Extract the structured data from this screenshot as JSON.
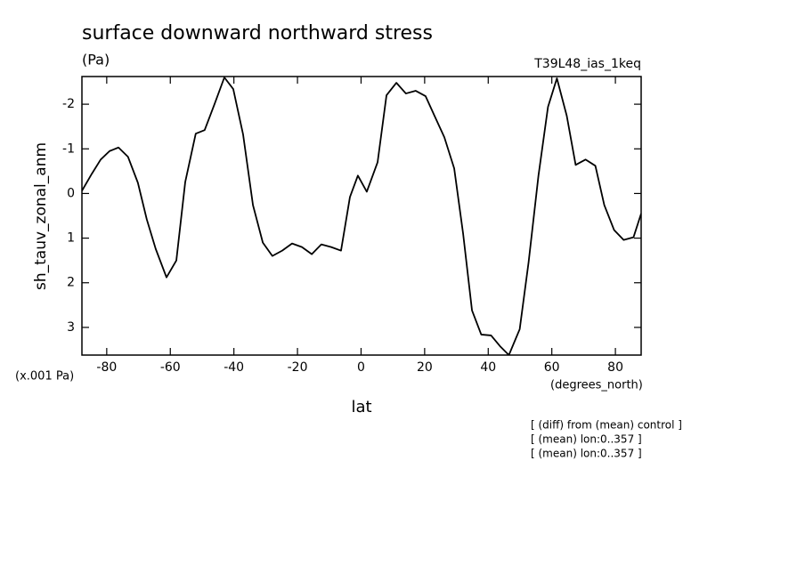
{
  "chart_data": {
    "type": "line",
    "title": "surface downward northward stress",
    "units_label": "(Pa)",
    "annotation": "T39L48_ias_1keq",
    "y_label": "sh_tauv_zonal_anm",
    "y_scale_label": "(x.001 Pa)",
    "x_units_label": "(degrees_north)",
    "x_label": "lat",
    "notes": [
      "[ (diff) from (mean) control ]",
      "[ (mean) lon:0..357 ]",
      "[ (mean) lon:0..357 ]"
    ],
    "x": [
      -87.8,
      -84.7,
      -81.9,
      -79.1,
      -76.3,
      -73.3,
      -70.2,
      -67.4,
      -64.6,
      -61.2,
      -58.1,
      -55.3,
      -52.0,
      -49.2,
      -46.1,
      -43.0,
      -40.2,
      -37.1,
      -34.0,
      -30.9,
      -27.9,
      -24.8,
      -21.7,
      -18.6,
      -15.5,
      -12.5,
      -9.4,
      -6.3,
      -3.5,
      -1.0,
      1.8,
      5.2,
      8.0,
      11.1,
      14.1,
      17.2,
      20.3,
      23.1,
      26.2,
      29.3,
      32.1,
      34.9,
      37.8,
      40.9,
      43.7,
      46.5,
      49.9,
      52.7,
      55.8,
      58.8,
      61.6,
      64.7,
      67.5,
      70.6,
      73.7,
      76.5,
      79.6,
      82.6,
      85.7,
      88.1
    ],
    "series": [
      {
        "name": "sh_tauv_zonal_anm",
        "color": "#000000",
        "values": [
          -0.06,
          -0.44,
          -0.76,
          -0.95,
          -1.03,
          -0.82,
          -0.24,
          0.58,
          1.24,
          1.88,
          1.5,
          -0.26,
          -1.34,
          -1.42,
          -2.0,
          -2.6,
          -2.34,
          -1.32,
          0.26,
          1.1,
          1.4,
          1.28,
          1.12,
          1.2,
          1.36,
          1.14,
          1.2,
          1.28,
          0.08,
          -0.4,
          -0.04,
          -0.7,
          -2.2,
          -2.48,
          -2.24,
          -2.3,
          -2.18,
          -1.74,
          -1.26,
          -0.56,
          0.9,
          2.62,
          3.16,
          3.18,
          3.42,
          3.62,
          3.04,
          1.54,
          -0.4,
          -1.94,
          -2.58,
          -1.74,
          -0.64,
          -0.76,
          -0.62,
          0.26,
          0.82,
          1.04,
          0.98,
          0.45
        ]
      }
    ],
    "xlim": [
      -87.8,
      88.1
    ],
    "xticks": [
      -80,
      -60,
      -40,
      -20,
      0,
      20,
      40,
      60,
      80
    ],
    "ylim": [
      -2.62,
      3.62
    ],
    "yticks": [
      -2,
      -1,
      0,
      1,
      2,
      3
    ],
    "y_inverted": true
  }
}
